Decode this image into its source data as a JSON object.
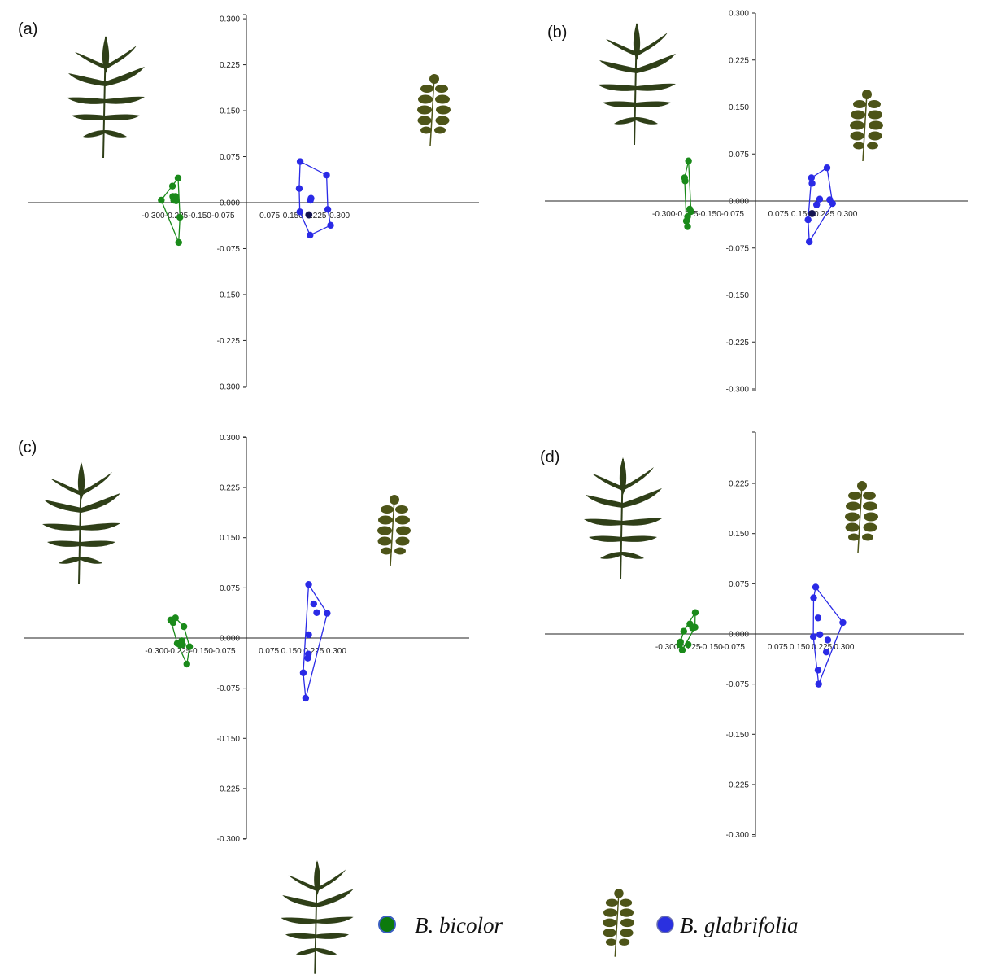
{
  "colors": {
    "bicolor": "#1a8a1a",
    "glabrifolia": "#2a2ae6",
    "centroid": "#141450",
    "axis": "#222222",
    "leaf_dark": "#2f3f18",
    "leaf_olive": "#4d5418",
    "legend_green_fill": "#0c7a0c",
    "legend_blue_fill": "#2a30e0"
  },
  "icons": [
    "bicolor-leaf-icon",
    "glabrifolia-leaf-icon",
    "green-dot-icon",
    "blue-dot-icon"
  ],
  "legend": {
    "bicolor_label": "B. bicolor",
    "glabrifolia_label": "B. glabrifolia"
  },
  "chart_data": [
    {
      "type": "scatter",
      "label": "(a)",
      "xlim": [
        -0.3,
        0.3
      ],
      "ylim": [
        -0.3,
        0.3
      ],
      "x_ticks": [
        "-0.300",
        "-0.225",
        "-0.150",
        "-0.075",
        "0.075",
        "0.150",
        "0.225",
        "0.300"
      ],
      "y_ticks": [
        "0.300",
        "0.225",
        "0.150",
        "0.075",
        "0.000",
        "-0.075",
        "-0.150",
        "-0.225",
        "-0.300"
      ],
      "series": [
        {
          "name": "B. bicolor",
          "points": [
            [
              -0.274,
              0.004
            ],
            [
              -0.238,
              0.027
            ],
            [
              -0.237,
              0.01
            ],
            [
              -0.234,
              0.004
            ],
            [
              -0.228,
              0.01
            ],
            [
              -0.226,
              0.003
            ],
            [
              -0.22,
              0.04
            ],
            [
              -0.218,
              -0.065
            ],
            [
              -0.214,
              -0.024
            ]
          ]
        },
        {
          "name": "B. glabrifolia",
          "points": [
            [
              0.17,
              0.023
            ],
            [
              0.172,
              -0.015
            ],
            [
              0.173,
              0.067
            ],
            [
              0.201,
              -0.02
            ],
            [
              0.205,
              -0.053
            ],
            [
              0.206,
              0.004
            ],
            [
              0.208,
              0.007
            ],
            [
              0.258,
              0.045
            ],
            [
              0.262,
              -0.011
            ],
            [
              0.271,
              -0.037
            ]
          ]
        }
      ],
      "hulls": [
        [
          [
            -0.274,
            0.004
          ],
          [
            -0.218,
            -0.065
          ],
          [
            -0.214,
            -0.024
          ],
          [
            -0.22,
            0.04
          ]
        ],
        [
          [
            0.173,
            0.067
          ],
          [
            0.258,
            0.045
          ],
          [
            0.262,
            -0.011
          ],
          [
            0.271,
            -0.037
          ],
          [
            0.205,
            -0.053
          ],
          [
            0.172,
            -0.015
          ],
          [
            0.17,
            0.023
          ]
        ]
      ],
      "centroid": [
        0.201,
        -0.02
      ]
    },
    {
      "type": "scatter",
      "label": "(b)",
      "xlim": [
        -0.3,
        0.3
      ],
      "ylim": [
        -0.3,
        0.3
      ],
      "x_ticks": [
        "-0.300",
        "-0.225",
        "-0.150",
        "-0.075",
        "0.075",
        "0.150",
        "0.225",
        "0.300"
      ],
      "y_ticks": [
        "0.300",
        "0.225",
        "0.150",
        "0.075",
        "0.000",
        "-0.075",
        "-0.150",
        "-0.225",
        "-0.300"
      ],
      "series": [
        {
          "name": "B. bicolor",
          "points": [
            [
              -0.232,
              0.037
            ],
            [
              -0.23,
              0.032
            ],
            [
              -0.226,
              -0.032
            ],
            [
              -0.222,
              -0.025
            ],
            [
              -0.222,
              -0.041
            ],
            [
              -0.219,
              0.064
            ],
            [
              -0.215,
              -0.013
            ],
            [
              -0.211,
              -0.017
            ]
          ]
        },
        {
          "name": "B. glabrifolia",
          "points": [
            [
              0.172,
              -0.03
            ],
            [
              0.176,
              -0.065
            ],
            [
              0.183,
              0.037
            ],
            [
              0.185,
              0.028
            ],
            [
              0.2,
              -0.006
            ],
            [
              0.21,
              0.003
            ],
            [
              0.234,
              0.053
            ],
            [
              0.243,
              0.002
            ],
            [
              0.252,
              -0.004
            ]
          ]
        }
      ],
      "hulls": [
        [
          [
            -0.232,
            0.037
          ],
          [
            -0.226,
            -0.032
          ],
          [
            -0.222,
            -0.041
          ],
          [
            -0.211,
            -0.017
          ],
          [
            -0.219,
            0.064
          ]
        ],
        [
          [
            0.183,
            0.037
          ],
          [
            0.234,
            0.053
          ],
          [
            0.252,
            -0.004
          ],
          [
            0.176,
            -0.065
          ],
          [
            0.172,
            -0.03
          ]
        ]
      ],
      "centroid": [
        0.185,
        -0.02
      ]
    },
    {
      "type": "scatter",
      "label": "(c)",
      "xlim": [
        -0.3,
        0.3
      ],
      "ylim": [
        -0.3,
        0.3
      ],
      "x_ticks": [
        "-0.300",
        "-0.225",
        "-0.150",
        "-0.075",
        "0.075",
        "0.150",
        "0.225",
        "0.300"
      ],
      "y_ticks": [
        "0.300",
        "0.225",
        "0.150",
        "0.075",
        "0.000",
        "-0.075",
        "-0.150",
        "-0.225",
        "-0.300"
      ],
      "series": [
        {
          "name": "B. bicolor",
          "points": [
            [
              -0.253,
              0.027
            ],
            [
              -0.245,
              0.023
            ],
            [
              -0.237,
              0.03
            ],
            [
              -0.231,
              -0.008
            ],
            [
              -0.222,
              -0.01
            ],
            [
              -0.216,
              -0.004
            ],
            [
              -0.213,
              -0.01
            ],
            [
              -0.209,
              0.017
            ],
            [
              -0.199,
              -0.039
            ],
            [
              -0.19,
              -0.013
            ]
          ]
        },
        {
          "name": "B. glabrifolia",
          "points": [
            [
              0.19,
              -0.052
            ],
            [
              0.198,
              -0.09
            ],
            [
              0.205,
              -0.03
            ],
            [
              0.207,
              -0.024
            ],
            [
              0.208,
              0.005
            ],
            [
              0.208,
              0.08
            ],
            [
              0.225,
              0.051
            ],
            [
              0.235,
              0.038
            ],
            [
              0.27,
              0.037
            ]
          ]
        }
      ],
      "hulls": [
        [
          [
            -0.253,
            0.027
          ],
          [
            -0.237,
            0.03
          ],
          [
            -0.209,
            0.017
          ],
          [
            -0.19,
            -0.013
          ],
          [
            -0.199,
            -0.039
          ],
          [
            -0.231,
            -0.008
          ]
        ],
        [
          [
            0.208,
            0.08
          ],
          [
            0.27,
            0.037
          ],
          [
            0.198,
            -0.09
          ],
          [
            0.19,
            -0.052
          ]
        ]
      ]
    },
    {
      "type": "scatter",
      "label": "(d)",
      "xlim": [
        -0.3,
        0.3
      ],
      "ylim": [
        -0.3,
        0.3
      ],
      "x_ticks": [
        "-0.300",
        "-0.225",
        "-0.150",
        "-0.075",
        "0.075",
        "0.150",
        "0.225",
        "0.300"
      ],
      "y_ticks": [
        "0.225",
        "0.150",
        "0.075",
        "0.000",
        "-0.075",
        "-0.150",
        "-0.225",
        "-0.300"
      ],
      "series": [
        {
          "name": "B. bicolor",
          "points": [
            [
              -0.257,
              -0.016
            ],
            [
              -0.254,
              -0.012
            ],
            [
              -0.248,
              -0.024
            ],
            [
              -0.243,
              0.004
            ],
            [
              -0.228,
              -0.016
            ],
            [
              -0.222,
              0.015
            ],
            [
              -0.213,
              0.009
            ],
            [
              -0.205,
              0.01
            ],
            [
              -0.204,
              0.032
            ]
          ]
        },
        {
          "name": "B. glabrifolia",
          "points": [
            [
              0.196,
              -0.004
            ],
            [
              0.197,
              0.054
            ],
            [
              0.204,
              0.07
            ],
            [
              0.212,
              0.024
            ],
            [
              0.212,
              -0.054
            ],
            [
              0.214,
              -0.075
            ],
            [
              0.218,
              -0.001
            ],
            [
              0.24,
              -0.027
            ],
            [
              0.245,
              -0.009
            ],
            [
              0.296,
              0.017
            ]
          ]
        }
      ],
      "hulls": [
        [
          [
            -0.257,
            -0.016
          ],
          [
            -0.243,
            0.004
          ],
          [
            -0.204,
            0.032
          ],
          [
            -0.205,
            0.01
          ],
          [
            -0.248,
            -0.024
          ]
        ],
        [
          [
            0.204,
            0.07
          ],
          [
            0.296,
            0.017
          ],
          [
            0.214,
            -0.075
          ],
          [
            0.196,
            -0.004
          ],
          [
            0.197,
            0.054
          ]
        ]
      ]
    }
  ]
}
